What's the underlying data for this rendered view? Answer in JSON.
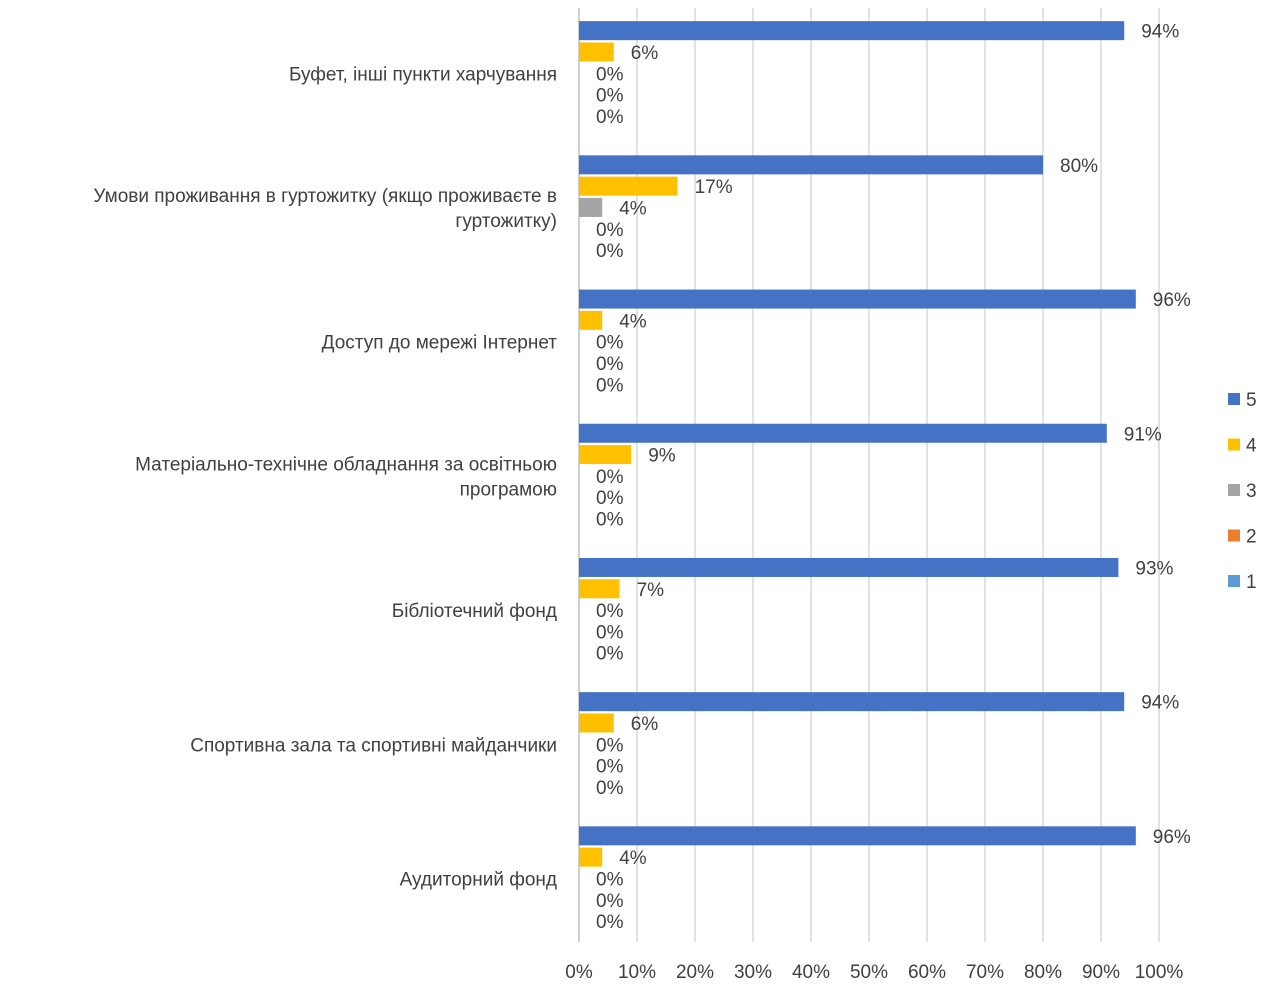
{
  "chart_data": {
    "type": "bar",
    "orientation": "horizontal",
    "categories": [
      [
        "Буфет, інші пункти харчування"
      ],
      [
        "Умови проживання в гуртожитку (якщо проживаєте в",
        "гуртожитку)"
      ],
      [
        "Доступ до мережі Інтернет"
      ],
      [
        "Матеріально-технічне обладнання за освітньою",
        "програмою"
      ],
      [
        "Бібліотечний фонд"
      ],
      [
        "Спортивна зала та спортивні майданчики"
      ],
      [
        "Аудиторний фонд"
      ]
    ],
    "series": [
      {
        "name": "5",
        "color": "#4472C4",
        "values": [
          94,
          80,
          96,
          91,
          93,
          94,
          96
        ]
      },
      {
        "name": "4",
        "color": "#FFC000",
        "values": [
          6,
          17,
          4,
          9,
          7,
          6,
          4
        ]
      },
      {
        "name": "3",
        "color": "#A5A5A5",
        "values": [
          0,
          4,
          0,
          0,
          0,
          0,
          0
        ]
      },
      {
        "name": "2",
        "color": "#ED7D31",
        "values": [
          0,
          0,
          0,
          0,
          0,
          0,
          0
        ]
      },
      {
        "name": "1",
        "color": "#5B9BD5",
        "values": [
          0,
          0,
          0,
          0,
          0,
          0,
          0
        ]
      }
    ],
    "xlim": [
      0,
      100
    ],
    "x_ticks": [
      "0%",
      "10%",
      "20%",
      "30%",
      "40%",
      "50%",
      "60%",
      "70%",
      "80%",
      "90%",
      "100%"
    ],
    "value_suffix": "%",
    "grid": true,
    "legend_position": "right",
    "title": "",
    "xlabel": "",
    "ylabel": ""
  }
}
